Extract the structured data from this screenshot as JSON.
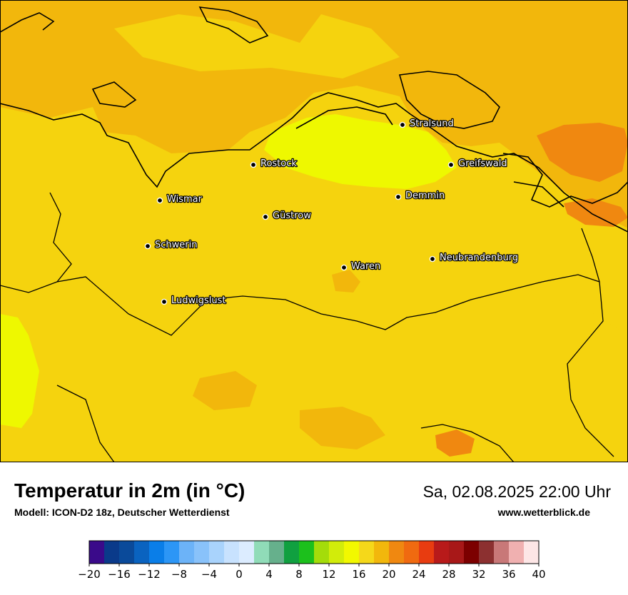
{
  "title": "Temperatur in 2m (in °C)",
  "model_info": "Modell: ICON-D2 18z, Deutscher Wetterdienst",
  "datetime": "Sa, 02.08.2025 22:00 Uhr",
  "website": "www.wetterblick.de",
  "map": {
    "background_color": "#f2b70c",
    "cities": [
      {
        "name": "Stralsund"
      },
      {
        "name": "Rostock"
      },
      {
        "name": "Greifswald"
      },
      {
        "name": "Demmin"
      },
      {
        "name": "Wismar"
      },
      {
        "name": "Güstrow"
      },
      {
        "name": "Schwerin"
      },
      {
        "name": "Neubrandenburg"
      },
      {
        "name": "Waren"
      },
      {
        "name": "Ludwigslust"
      }
    ]
  },
  "colorbar": {
    "tick_labels": [
      "−20",
      "−16",
      "−12",
      "−8",
      "−4",
      "0",
      "4",
      "8",
      "12",
      "16",
      "20",
      "24",
      "28",
      "32",
      "36",
      "40"
    ],
    "colors": [
      "#3a0a8a",
      "#0a3a8a",
      "#0a4a9a",
      "#0a63c0",
      "#0a7ee8",
      "#2c96f6",
      "#6cb3f8",
      "#89c2fa",
      "#a9d3fc",
      "#c8e2fe",
      "#dcecff",
      "#90dcb8",
      "#66b08c",
      "#10a040",
      "#1cc01c",
      "#a4dc0a",
      "#d2ec0a",
      "#f2f800",
      "#f5d81a",
      "#f2b70c",
      "#f08810",
      "#f06a10",
      "#e83c10",
      "#b81a1a",
      "#a81818",
      "#7c0000",
      "#8c3030",
      "#c87878",
      "#f0b0b0",
      "#fde6e6"
    ]
  }
}
